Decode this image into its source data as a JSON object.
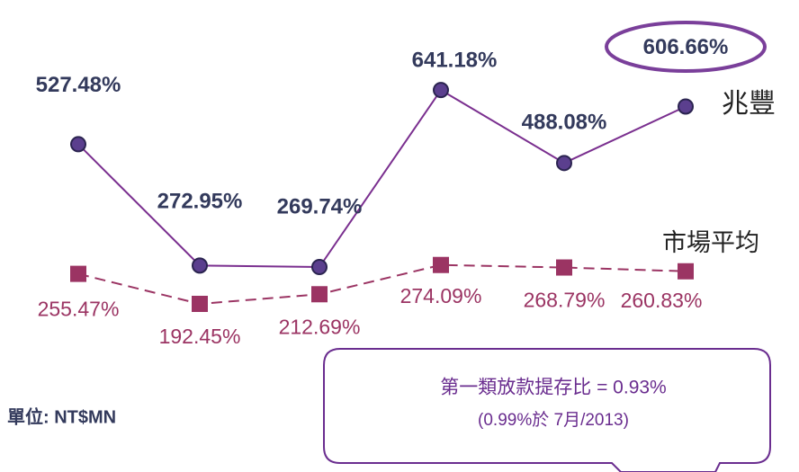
{
  "chart_data": {
    "type": "line",
    "categories": [
      null,
      null,
      null,
      null,
      null,
      null
    ],
    "series": [
      {
        "name": "兆豐",
        "color": "#7a2f8f",
        "values": [
          527.48,
          272.95,
          269.74,
          641.18,
          488.08,
          606.66
        ],
        "value_labels": [
          "527.48%",
          "272.95%",
          "269.74%",
          "641.18%",
          "488.08%",
          "606.66%"
        ]
      },
      {
        "name": "市場平均",
        "color": "#9b3463",
        "values": [
          255.47,
          192.45,
          212.69,
          274.09,
          268.79,
          260.83
        ],
        "value_labels": [
          "255.47%",
          "192.45%",
          "212.69%",
          "274.09%",
          "268.79%",
          "260.83%"
        ]
      }
    ],
    "ylim": [
      0,
      800
    ],
    "annotations": [
      "單位: NT$MN",
      "第一類放款提存比 = 0.93%",
      "(0.99%於 7月/2013)"
    ]
  }
}
